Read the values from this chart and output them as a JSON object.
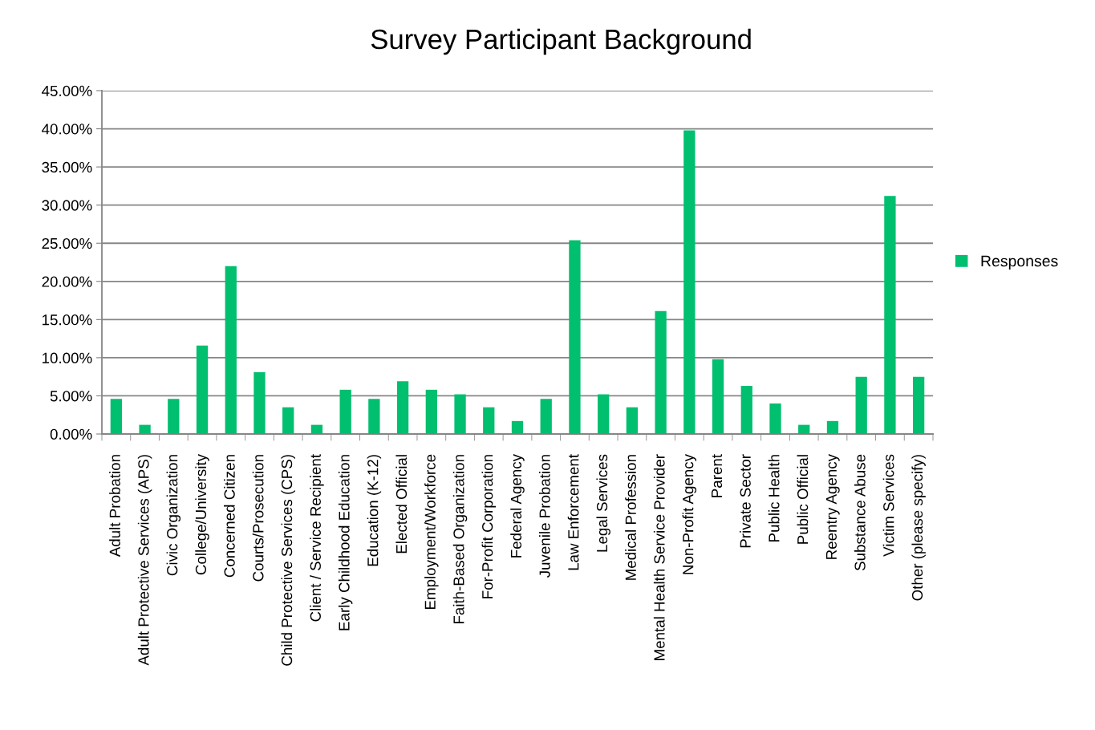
{
  "chart_data": {
    "type": "bar",
    "title": "Survey Participant Background",
    "categories": [
      "Adult Probation",
      "Adult Protective Services (APS)",
      "Civic Organization",
      "College/University",
      "Concerned Citizen",
      "Courts/Prosecution",
      "Child Protective Services (CPS)",
      "Client / Service Recipient",
      "Early Childhood Education",
      "Education (K-12)",
      "Elected Official",
      "Employment/Workforce",
      "Faith-Based Organization",
      "For-Profit Corporation",
      "Federal Agency",
      "Juvenile Probation",
      "Law Enforcement",
      "Legal Services",
      "Medical Profession",
      "Mental Health Service Provider",
      "Non-Profit Agency",
      "Parent",
      "Private Sector",
      "Public Health",
      "Public Official",
      "Reentry Agency",
      "Substance Abuse",
      "Victim Services",
      "Other (please specify)"
    ],
    "series": [
      {
        "name": "Responses",
        "color": "#00bf6f",
        "values": [
          4.6,
          1.2,
          4.6,
          11.6,
          22.0,
          8.1,
          3.5,
          1.2,
          5.8,
          4.6,
          6.9,
          5.8,
          5.2,
          3.5,
          1.7,
          4.6,
          25.4,
          5.2,
          3.5,
          16.1,
          39.8,
          9.8,
          6.3,
          4.0,
          1.2,
          1.7,
          7.5,
          31.2,
          7.5
        ]
      }
    ],
    "ylim": [
      0,
      45
    ],
    "yticks": [
      {
        "value": 0,
        "label": "0.00%"
      },
      {
        "value": 5,
        "label": "5.00%"
      },
      {
        "value": 10,
        "label": "10.00%"
      },
      {
        "value": 15,
        "label": "15.00%"
      },
      {
        "value": 20,
        "label": "20.00%"
      },
      {
        "value": 25,
        "label": "25.00%"
      },
      {
        "value": 30,
        "label": "30.00%"
      },
      {
        "value": 35,
        "label": "35.00%"
      },
      {
        "value": 40,
        "label": "40.00%"
      },
      {
        "value": 45,
        "label": "45.00%"
      }
    ],
    "grid": "y",
    "legend": "right"
  }
}
